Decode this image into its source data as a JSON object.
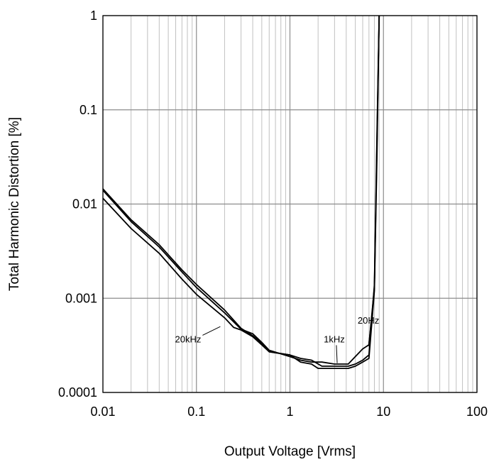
{
  "chart_data": {
    "type": "line",
    "title": "",
    "xlabel": "Output Voltage [Vrms]",
    "ylabel": "Total Harmonic Distortion [%]",
    "x_scale": "log",
    "y_scale": "log",
    "xlim": [
      0.01,
      100
    ],
    "ylim": [
      0.0001,
      1
    ],
    "x_ticks": [
      0.01,
      0.1,
      1,
      10,
      100
    ],
    "x_tick_labels": [
      "0.01",
      "0.1",
      "1",
      "10",
      "100"
    ],
    "y_ticks": [
      0.0001,
      0.001,
      0.01,
      0.1,
      1
    ],
    "y_tick_labels": [
      "0.0001",
      "0.001",
      "0.01",
      "0.1",
      "1"
    ],
    "grid": true,
    "legend": "none",
    "line_color": "#000000",
    "grid_color": "#c0c0c0",
    "series": [
      {
        "name": "20Hz",
        "x": [
          0.01,
          0.02,
          0.04,
          0.07,
          0.1,
          0.2,
          0.3,
          0.4,
          0.5,
          0.6,
          1,
          1.3,
          1.7,
          2.2,
          3,
          4.2,
          5,
          6,
          7,
          8,
          8.5,
          9
        ],
        "y": [
          0.014,
          0.0065,
          0.0035,
          0.0019,
          0.0013,
          0.0007,
          0.00047,
          0.00042,
          0.00034,
          0.00028,
          0.00024,
          0.00022,
          0.00021,
          0.00021,
          0.0002,
          0.0002,
          0.00024,
          0.00029,
          0.00032,
          0.0013,
          0.04,
          1
        ]
      },
      {
        "name": "1kHz",
        "x": [
          0.01,
          0.02,
          0.04,
          0.07,
          0.1,
          0.2,
          0.3,
          0.4,
          0.5,
          0.6,
          1,
          1.3,
          1.7,
          2.2,
          3,
          4.2,
          5,
          6,
          7,
          8,
          8.5,
          9
        ],
        "y": [
          0.0145,
          0.0068,
          0.0037,
          0.002,
          0.0014,
          0.00075,
          0.00048,
          0.0004,
          0.00033,
          0.00027,
          0.00025,
          0.00023,
          0.00022,
          0.00019,
          0.00019,
          0.00019,
          0.0002,
          0.00022,
          0.00025,
          0.0014,
          0.05,
          1
        ]
      },
      {
        "name": "20kHz",
        "x": [
          0.01,
          0.02,
          0.04,
          0.07,
          0.1,
          0.2,
          0.25,
          0.3,
          0.4,
          0.5,
          0.6,
          1,
          1.3,
          1.7,
          2,
          3,
          4.2,
          5,
          6,
          7,
          8,
          8.5,
          9
        ],
        "y": [
          0.0115,
          0.0055,
          0.003,
          0.0016,
          0.0011,
          0.00062,
          0.00049,
          0.00046,
          0.00039,
          0.00032,
          0.00027,
          0.00025,
          0.00021,
          0.0002,
          0.00018,
          0.00018,
          0.00018,
          0.00019,
          0.00021,
          0.00023,
          0.0012,
          0.03,
          1
        ]
      }
    ],
    "annotations": [
      {
        "text": "20Hz",
        "x": 5.3,
        "y": 0.00054,
        "line_to_x": 6.9,
        "line_to_y": 0.00031
      },
      {
        "text": "1kHz",
        "x": 2.3,
        "y": 0.00034,
        "line_to_x": 3.2,
        "line_to_y": 0.000205
      },
      {
        "text": "20kHz",
        "x": 0.059,
        "y": 0.00034,
        "line_to_x": 0.18,
        "line_to_y": 0.0005
      }
    ]
  }
}
